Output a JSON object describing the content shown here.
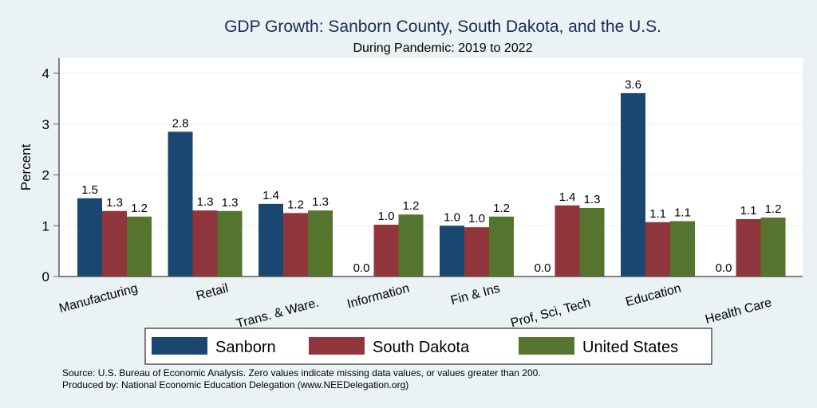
{
  "chart_data": {
    "type": "bar",
    "title": "GDP Growth: Sanborn County, South Dakota, and the U.S.",
    "subtitle": "During Pandemic: 2019 to 2022",
    "xlabel": "",
    "ylabel": "Percent",
    "ylim": [
      0,
      4.2
    ],
    "yticks": [
      0,
      1,
      2,
      3,
      4
    ],
    "grid": true,
    "categories": [
      "Manufacturing",
      "Retail",
      "Trans. & Ware.",
      "Information",
      "Fin & Ins",
      "Prof, Sci, Tech",
      "Education",
      "Health Care"
    ],
    "series": [
      {
        "name": "Sanborn",
        "color": "#1a476f",
        "values": [
          1.54,
          2.85,
          1.43,
          0.0,
          1.0,
          0.0,
          3.61,
          0.0
        ],
        "labels": [
          "1.5",
          "2.8",
          "1.4",
          "0.0",
          "1.0",
          "0.0",
          "3.6",
          "0.0"
        ]
      },
      {
        "name": "South Dakota",
        "color": "#90353b",
        "values": [
          1.29,
          1.3,
          1.25,
          1.02,
          0.97,
          1.4,
          1.07,
          1.13
        ],
        "labels": [
          "1.3",
          "1.3",
          "1.2",
          "1.0",
          "1.0",
          "1.4",
          "1.1",
          "1.1"
        ]
      },
      {
        "name": "United States",
        "color": "#55752f",
        "values": [
          1.18,
          1.29,
          1.3,
          1.22,
          1.18,
          1.35,
          1.09,
          1.16
        ],
        "labels": [
          "1.2",
          "1.3",
          "1.3",
          "1.2",
          "1.2",
          "1.3",
          "1.1",
          "1.2"
        ]
      }
    ],
    "legend": {
      "position": "bottom",
      "entries": [
        "Sanborn",
        "South Dakota",
        "United States"
      ]
    },
    "notes": [
      "Source: U.S. Bureau of Economic Analysis. Zero values indicate missing data values, or values greater than 200.",
      "Produced by: National Economic Education Delegation (www.NEEDelegation.org)"
    ]
  }
}
